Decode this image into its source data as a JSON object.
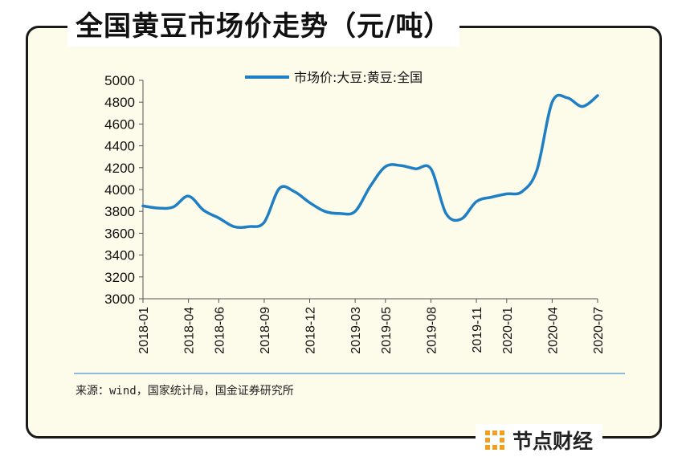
{
  "title": "全国黄豆市场价走势（元/吨）",
  "source": "来源：wind，国家统计局，国金证券研究所",
  "brand": {
    "name": "节点财经",
    "icon": "grid-dots-icon",
    "icon_color": "#f0a020"
  },
  "colors": {
    "series": "#1f7fc4",
    "background": "#fdfbea",
    "frame": "#1a1a1a"
  },
  "chart_data": {
    "type": "line",
    "title": "全国黄豆市场价走势（元/吨）",
    "xlabel": "",
    "ylabel": "",
    "ylim": [
      3000,
      5000
    ],
    "yticks": [
      "3000",
      "3200",
      "3400",
      "3600",
      "3800",
      "4000",
      "4200",
      "4400",
      "4600",
      "4800",
      "5000"
    ],
    "xticks": [
      "2018-01",
      "2018-04",
      "2018-06",
      "2018-09",
      "2018-12",
      "2019-03",
      "2019-05",
      "2019-08",
      "2019-11",
      "2020-01",
      "2020-04",
      "2020-07"
    ],
    "grid": false,
    "legend": "top-center",
    "series": [
      {
        "name": "市场价:大豆:黄豆:全国",
        "x": [
          "2018-01",
          "2018-02",
          "2018-03",
          "2018-04",
          "2018-05",
          "2018-06",
          "2018-07",
          "2018-08",
          "2018-09",
          "2018-10",
          "2018-11",
          "2018-12",
          "2019-01",
          "2019-02",
          "2019-03",
          "2019-04",
          "2019-05",
          "2019-06",
          "2019-07",
          "2019-08",
          "2019-09",
          "2019-10",
          "2019-11",
          "2019-12",
          "2020-01",
          "2020-02",
          "2020-03",
          "2020-04",
          "2020-05",
          "2020-06",
          "2020-07"
        ],
        "values": [
          3850,
          3830,
          3840,
          3940,
          3810,
          3740,
          3660,
          3660,
          3700,
          4010,
          3980,
          3880,
          3800,
          3780,
          3800,
          4030,
          4210,
          4220,
          4190,
          4190,
          3780,
          3730,
          3890,
          3930,
          3960,
          3980,
          4180,
          4800,
          4840,
          4760,
          4860
        ]
      }
    ]
  }
}
